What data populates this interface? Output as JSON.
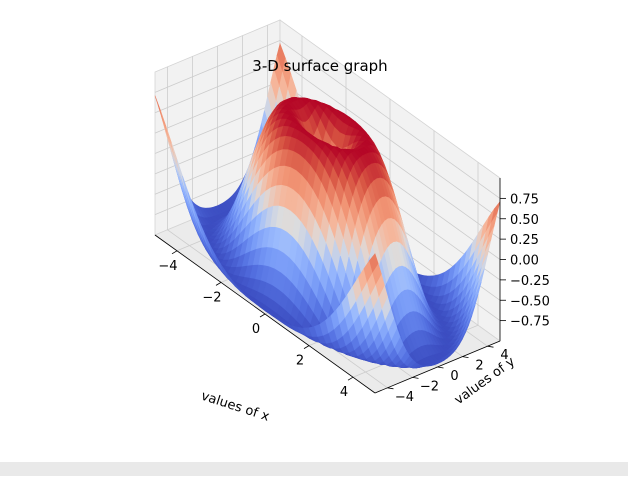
{
  "chart_data": {
    "type": "surface",
    "title": "3-D surface graph",
    "xlabel": "values of x",
    "ylabel": "values of y",
    "zlabel": "",
    "function": "sin(sqrt(x^2 + y^2))",
    "colormap": "coolwarm",
    "xlim": [
      -5,
      5
    ],
    "ylim": [
      -5,
      5
    ],
    "zlim": [
      -1,
      1
    ],
    "x_ticks": [
      "−4",
      "−2",
      "0",
      "2",
      "4"
    ],
    "y_ticks": [
      "−4",
      "−2",
      "0",
      "2",
      "4"
    ],
    "z_ticks": [
      "0.75",
      "0.50",
      "0.25",
      "0.00",
      "−0.25",
      "−0.50",
      "−0.75"
    ],
    "x_tick_values": [
      -4,
      -2,
      0,
      2,
      4
    ],
    "y_tick_values": [
      -4,
      -2,
      0,
      2,
      4
    ],
    "z_tick_values": [
      0.75,
      0.5,
      0.25,
      0.0,
      -0.25,
      -0.5,
      -0.75
    ],
    "grid": true,
    "legend": "none",
    "colors": {
      "pane_x": "#f2f2f2",
      "pane_y": "#e6e6e6",
      "pane_z": "#ebebeb",
      "grid": "#cccccc",
      "low": "#3b4cc0",
      "mid": "#dddddd",
      "high": "#b40426"
    }
  }
}
